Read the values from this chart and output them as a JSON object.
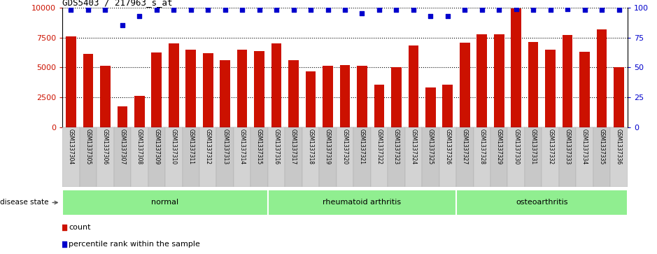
{
  "title": "GDS5403 / 217963_s_at",
  "samples": [
    "GSM1337304",
    "GSM1337305",
    "GSM1337306",
    "GSM1337307",
    "GSM1337308",
    "GSM1337309",
    "GSM1337310",
    "GSM1337311",
    "GSM1337312",
    "GSM1337313",
    "GSM1337314",
    "GSM1337315",
    "GSM1337316",
    "GSM1337317",
    "GSM1337318",
    "GSM1337319",
    "GSM1337320",
    "GSM1337321",
    "GSM1337322",
    "GSM1337323",
    "GSM1337324",
    "GSM1337325",
    "GSM1337326",
    "GSM1337327",
    "GSM1337328",
    "GSM1337329",
    "GSM1337330",
    "GSM1337331",
    "GSM1337332",
    "GSM1337333",
    "GSM1337334",
    "GSM1337335",
    "GSM1337336"
  ],
  "counts": [
    7600,
    6100,
    5100,
    1700,
    2600,
    6250,
    7000,
    6500,
    6200,
    5600,
    6450,
    6350,
    7000,
    5600,
    4650,
    5100,
    5200,
    5100,
    3550,
    5000,
    6800,
    3300,
    3550,
    7050,
    7750,
    7750,
    9950,
    7100,
    6500,
    7700,
    6300,
    8200,
    5000
  ],
  "percentiles": [
    98,
    98,
    98,
    85,
    93,
    98,
    98,
    98,
    98,
    98,
    98,
    98,
    98,
    98,
    98,
    98,
    98,
    95,
    98,
    98,
    98,
    93,
    93,
    98,
    98,
    98,
    99,
    98,
    98,
    99,
    98,
    98,
    98
  ],
  "groups": [
    {
      "label": "normal",
      "start": 0,
      "end": 12
    },
    {
      "label": "rheumatoid arthritis",
      "start": 12,
      "end": 23
    },
    {
      "label": "osteoarthritis",
      "start": 23,
      "end": 33
    }
  ],
  "bar_color": "#cc1100",
  "percentile_color": "#0000cc",
  "ymax": 10000,
  "yticks_left": [
    0,
    2500,
    5000,
    7500,
    10000
  ],
  "yticks_right": [
    0,
    25,
    50,
    75,
    100
  ],
  "bg_color": "#ffffff",
  "group_bg": "#90ee90",
  "tick_bg": "#d3d3d3",
  "tick_alt_bg": "#c8c8c8"
}
